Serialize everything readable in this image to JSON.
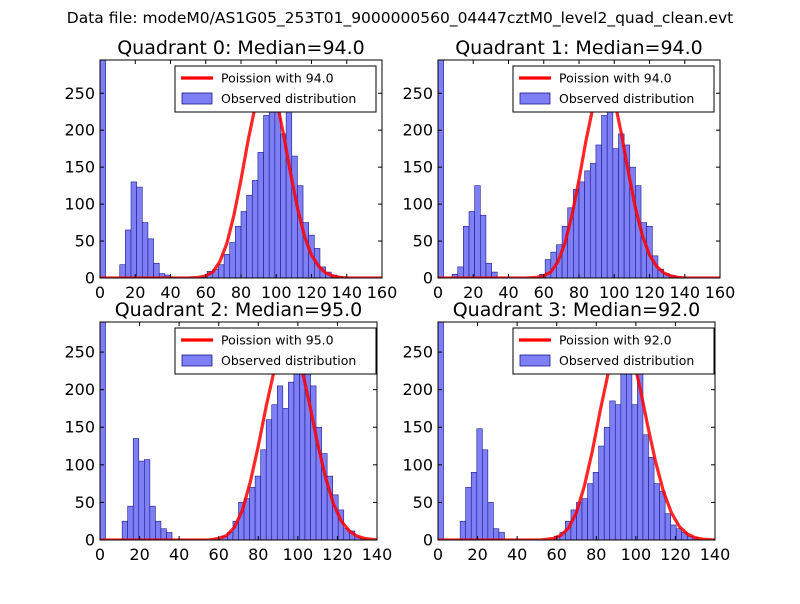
{
  "figure": {
    "suptitle": "Data file: modeM0/AS1G05_253T01_9000000560_04447cztM0_level2_quad_clean.evt"
  },
  "colors": {
    "bar_fill": "#7f7ff5",
    "bar_edge": "#1a1a8a",
    "curve": "#ff0000",
    "axis": "#000000"
  },
  "chart_data": [
    {
      "type": "bar",
      "title": "Quadrant 0: Median=94.0",
      "median": 94.0,
      "xlim": [
        0,
        160
      ],
      "ylim": [
        0,
        295
      ],
      "xticks": [
        0,
        20,
        40,
        60,
        80,
        100,
        120,
        140,
        160
      ],
      "yticks": [
        0,
        50,
        100,
        150,
        200,
        250
      ],
      "legend": {
        "placement": "top-right",
        "line_label": "Poission with 94.0",
        "bar_label": "Observed distribution"
      },
      "bin_width": 3.2,
      "bins": [
        [
          0,
          295
        ],
        [
          11.2,
          18
        ],
        [
          14.4,
          65
        ],
        [
          17.6,
          130
        ],
        [
          20.8,
          123
        ],
        [
          24,
          75
        ],
        [
          27.2,
          53
        ],
        [
          30.4,
          20
        ],
        [
          33.6,
          6
        ],
        [
          36.8,
          4
        ],
        [
          40,
          1
        ],
        [
          57.6,
          1
        ],
        [
          60.8,
          9
        ],
        [
          64,
          12
        ],
        [
          67.2,
          18
        ],
        [
          70.4,
          32
        ],
        [
          73.6,
          48
        ],
        [
          76.8,
          70
        ],
        [
          80,
          90
        ],
        [
          83.2,
          112
        ],
        [
          86.4,
          132
        ],
        [
          89.6,
          170
        ],
        [
          92.8,
          220
        ],
        [
          96,
          265
        ],
        [
          99.2,
          240
        ],
        [
          102.4,
          195
        ],
        [
          105.6,
          225
        ],
        [
          108.8,
          165
        ],
        [
          112,
          125
        ],
        [
          115.2,
          75
        ],
        [
          118.4,
          58
        ],
        [
          121.6,
          40
        ],
        [
          124.8,
          15
        ],
        [
          128,
          8
        ],
        [
          131.2,
          4
        ],
        [
          134.4,
          2
        ]
      ],
      "poisson_curve": {
        "x": [
          0,
          40,
          50,
          56,
          60,
          64,
          68,
          72,
          76,
          80,
          84,
          88,
          92,
          94,
          96,
          100,
          104,
          108,
          112,
          116,
          120,
          124,
          128,
          132,
          136,
          140,
          160
        ],
        "y": [
          0,
          0,
          0,
          1,
          3,
          8,
          22,
          47,
          85,
          133,
          186,
          232,
          264,
          268,
          266,
          242,
          196,
          143,
          95,
          57,
          31,
          16,
          7,
          3,
          1,
          0,
          0
        ]
      }
    },
    {
      "type": "bar",
      "title": "Quadrant 1: Median=94.0",
      "median": 94.0,
      "xlim": [
        0,
        160
      ],
      "ylim": [
        0,
        295
      ],
      "xticks": [
        0,
        20,
        40,
        60,
        80,
        100,
        120,
        140,
        160
      ],
      "yticks": [
        0,
        50,
        100,
        150,
        200,
        250
      ],
      "legend": {
        "placement": "top-right",
        "line_label": "Poission with 94.0",
        "bar_label": "Observed distribution"
      },
      "bin_width": 3.2,
      "bins": [
        [
          0,
          295
        ],
        [
          8,
          5
        ],
        [
          11.2,
          15
        ],
        [
          14.4,
          70
        ],
        [
          17.6,
          90
        ],
        [
          20.8,
          125
        ],
        [
          24,
          85
        ],
        [
          27.2,
          20
        ],
        [
          30.4,
          8
        ],
        [
          57.6,
          5
        ],
        [
          60.8,
          25
        ],
        [
          64,
          35
        ],
        [
          67.2,
          45
        ],
        [
          70.4,
          70
        ],
        [
          73.6,
          95
        ],
        [
          76.8,
          120
        ],
        [
          80,
          130
        ],
        [
          83.2,
          145
        ],
        [
          86.4,
          155
        ],
        [
          89.6,
          180
        ],
        [
          92.8,
          220
        ],
        [
          96,
          260
        ],
        [
          99.2,
          175
        ],
        [
          102.4,
          195
        ],
        [
          105.6,
          180
        ],
        [
          108.8,
          150
        ],
        [
          112,
          125
        ],
        [
          115.2,
          75
        ],
        [
          118.4,
          70
        ],
        [
          121.6,
          30
        ],
        [
          124.8,
          12
        ],
        [
          128,
          6
        ],
        [
          131.2,
          3
        ],
        [
          134.4,
          2
        ]
      ],
      "poisson_curve": {
        "x": [
          0,
          40,
          50,
          56,
          60,
          64,
          68,
          72,
          76,
          80,
          84,
          88,
          92,
          94,
          96,
          100,
          104,
          108,
          112,
          116,
          120,
          124,
          128,
          132,
          136,
          140,
          160
        ],
        "y": [
          0,
          0,
          0,
          1,
          3,
          8,
          22,
          47,
          85,
          133,
          186,
          232,
          264,
          268,
          266,
          242,
          196,
          143,
          95,
          57,
          31,
          16,
          7,
          3,
          1,
          0,
          0
        ]
      }
    },
    {
      "type": "bar",
      "title": "Quadrant 2: Median=95.0",
      "median": 95.0,
      "xlim": [
        0,
        140
      ],
      "ylim": [
        0,
        290
      ],
      "xticks": [
        0,
        20,
        40,
        60,
        80,
        100,
        120,
        140
      ],
      "yticks": [
        0,
        50,
        100,
        150,
        200,
        250
      ],
      "legend": {
        "placement": "top-right",
        "line_label": "Poission with 95.0",
        "bar_label": "Observed distribution"
      },
      "bin_width": 2.8,
      "bins": [
        [
          0,
          290
        ],
        [
          11.2,
          25
        ],
        [
          14,
          45
        ],
        [
          16.8,
          135
        ],
        [
          19.6,
          105
        ],
        [
          22.4,
          107
        ],
        [
          25.2,
          45
        ],
        [
          28,
          25
        ],
        [
          30.8,
          15
        ],
        [
          33.6,
          10
        ],
        [
          61.6,
          5
        ],
        [
          64.4,
          10
        ],
        [
          67.2,
          25
        ],
        [
          70,
          50
        ],
        [
          72.8,
          55
        ],
        [
          75.6,
          70
        ],
        [
          78.4,
          85
        ],
        [
          81.2,
          120
        ],
        [
          84,
          160
        ],
        [
          86.8,
          180
        ],
        [
          89.6,
          205
        ],
        [
          92.4,
          175
        ],
        [
          95.2,
          210
        ],
        [
          98,
          270
        ],
        [
          100.8,
          235
        ],
        [
          103.6,
          260
        ],
        [
          106.4,
          205
        ],
        [
          109.2,
          150
        ],
        [
          112,
          115
        ],
        [
          114.8,
          85
        ],
        [
          117.6,
          60
        ],
        [
          120.4,
          40
        ],
        [
          123.2,
          15
        ],
        [
          126,
          12
        ],
        [
          128.8,
          4
        ],
        [
          131.6,
          2
        ]
      ],
      "poisson_curve": {
        "x": [
          0,
          40,
          55,
          60,
          64,
          68,
          72,
          76,
          80,
          84,
          88,
          92,
          95,
          98,
          102,
          106,
          110,
          114,
          118,
          122,
          126,
          130,
          134,
          140
        ],
        "y": [
          0,
          0,
          0,
          2,
          6,
          17,
          40,
          78,
          125,
          178,
          225,
          262,
          272,
          262,
          228,
          180,
          128,
          83,
          48,
          25,
          12,
          5,
          2,
          0
        ]
      }
    },
    {
      "type": "bar",
      "title": "Quadrant 3: Median=92.0",
      "median": 92.0,
      "xlim": [
        0,
        140
      ],
      "ylim": [
        0,
        290
      ],
      "xticks": [
        0,
        20,
        40,
        60,
        80,
        100,
        120,
        140
      ],
      "yticks": [
        0,
        50,
        100,
        150,
        200,
        250
      ],
      "legend": {
        "placement": "top-right",
        "line_label": "Poission with 92.0",
        "bar_label": "Observed distribution"
      },
      "bin_width": 2.8,
      "bins": [
        [
          0,
          290
        ],
        [
          11.2,
          25
        ],
        [
          14,
          70
        ],
        [
          16.8,
          90
        ],
        [
          19.6,
          148
        ],
        [
          22.4,
          120
        ],
        [
          25.2,
          50
        ],
        [
          28,
          15
        ],
        [
          30.8,
          10
        ],
        [
          58.8,
          5
        ],
        [
          61.6,
          10
        ],
        [
          64.4,
          25
        ],
        [
          67.2,
          40
        ],
        [
          70,
          50
        ],
        [
          72.8,
          55
        ],
        [
          75.6,
          75
        ],
        [
          78.4,
          90
        ],
        [
          81.2,
          125
        ],
        [
          84,
          150
        ],
        [
          86.8,
          185
        ],
        [
          89.6,
          180
        ],
        [
          92.4,
          260
        ],
        [
          95.2,
          240
        ],
        [
          98,
          180
        ],
        [
          100.8,
          225
        ],
        [
          103.6,
          140
        ],
        [
          106.4,
          110
        ],
        [
          109.2,
          75
        ],
        [
          112,
          65
        ],
        [
          114.8,
          35
        ],
        [
          117.6,
          20
        ],
        [
          120.4,
          15
        ],
        [
          123.2,
          10
        ],
        [
          126,
          5
        ],
        [
          128.8,
          3
        ]
      ],
      "poisson_curve": {
        "x": [
          0,
          40,
          52,
          58,
          62,
          66,
          70,
          74,
          78,
          82,
          86,
          90,
          92,
          94,
          98,
          102,
          106,
          110,
          114,
          118,
          122,
          126,
          130,
          134,
          140
        ],
        "y": [
          0,
          0,
          0,
          2,
          6,
          16,
          37,
          72,
          118,
          172,
          222,
          264,
          275,
          272,
          248,
          204,
          152,
          104,
          64,
          36,
          18,
          8,
          3,
          1,
          0
        ]
      }
    }
  ]
}
